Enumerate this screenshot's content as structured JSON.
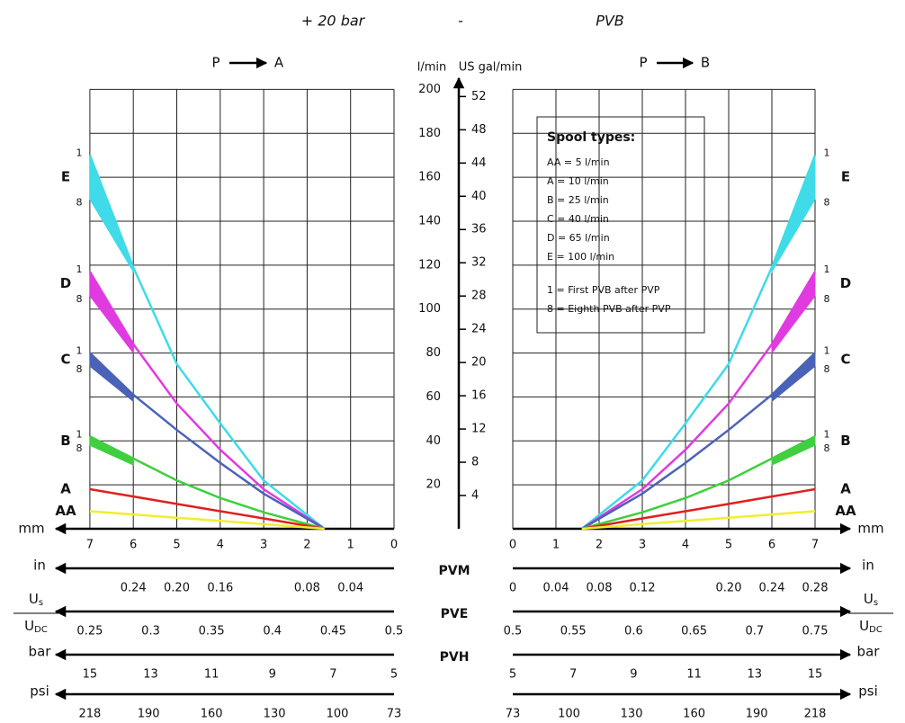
{
  "chart_data": {
    "type": "line",
    "title_parts": [
      "+ 20 bar",
      "-",
      "PVB"
    ],
    "panels": [
      {
        "from": "P",
        "to": "A"
      },
      {
        "from": "P",
        "to": "B"
      }
    ],
    "y_label": "l/min",
    "y2_label": "US gal/min",
    "ylim": [
      0,
      210
    ],
    "yticks": [
      20,
      40,
      60,
      80,
      100,
      120,
      140,
      160,
      180,
      200
    ],
    "y2lim": [
      0,
      55.5
    ],
    "y2ticks": [
      4,
      8,
      12,
      16,
      20,
      24,
      28,
      32,
      36,
      40,
      44,
      48,
      52
    ],
    "grid": true,
    "x_label": "mm",
    "xlim": [
      0,
      7
    ],
    "xticks": [
      0,
      1,
      2,
      3,
      4,
      5,
      6,
      7
    ],
    "x": [
      1.6,
      3,
      4,
      5,
      6,
      7
    ],
    "band_labels": [
      "1",
      "8"
    ],
    "series": [
      {
        "name": "E",
        "color": "#3fdbe8",
        "values": [
          0,
          22,
          48,
          75,
          119,
          170
        ],
        "low": [
          null,
          null,
          null,
          null,
          117,
          150
        ]
      },
      {
        "name": "D",
        "color": "#e03be0",
        "values": [
          0,
          18,
          36,
          57,
          84,
          117
        ],
        "low": [
          null,
          null,
          null,
          null,
          80,
          106
        ]
      },
      {
        "name": "C",
        "color": "#4a63b8",
        "values": [
          0,
          16,
          30,
          45,
          61,
          80
        ],
        "low": [
          null,
          null,
          null,
          null,
          58,
          74
        ]
      },
      {
        "name": "B",
        "color": "#3fcf3f",
        "values": [
          0,
          7.5,
          14,
          22,
          32,
          42
        ],
        "low": [
          null,
          null,
          null,
          null,
          29,
          38
        ]
      },
      {
        "name": "A",
        "color": "#e02020",
        "values": [
          0,
          4.7,
          8,
          11.3,
          14.7,
          18
        ],
        "low": [
          null,
          null,
          null,
          null,
          null,
          null
        ]
      },
      {
        "name": "AA",
        "color": "#f0ee30",
        "values": [
          0,
          2.1,
          3.6,
          5,
          6.5,
          8
        ],
        "low": [
          null,
          null,
          null,
          null,
          null,
          null
        ]
      }
    ],
    "legend": {
      "title": "Spool types:",
      "lines": [
        "AA = 5 l/min",
        "A = 10 l/min",
        "B = 25 l/min",
        "C = 40 l/min",
        "D = 65 l/min",
        "E = 100 l/min",
        "1 = First PVB after PVP",
        "8 = Eighth PVB after PVP"
      ]
    },
    "scales": [
      {
        "name": "in",
        "group": "PVM",
        "left": {
          "lim": [
            0,
            0.28
          ],
          "ticks": [
            0.04,
            0.08,
            0.16,
            {
              "value": 0.2,
              "label": "0.20"
            },
            0.24
          ]
        },
        "right": {
          "lim": [
            0,
            0.28
          ],
          "ticks": [
            0,
            0.04,
            0.08,
            0.12,
            {
              "value": 0.2,
              "label": "0.20"
            },
            0.24,
            0.28
          ]
        }
      },
      {
        "name": "U",
        "name_sub": "s",
        "denominator": "U",
        "denominator_sub": "DC",
        "group": "PVE",
        "left": {
          "lim": [
            0.5,
            0.25
          ],
          "ticks": [
            0.25,
            0.3,
            0.35,
            0.4,
            0.45,
            0.5
          ]
        },
        "right": {
          "lim": [
            0.5,
            0.75
          ],
          "ticks": [
            0.5,
            0.55,
            0.6,
            0.65,
            0.7,
            0.75
          ]
        }
      },
      {
        "name": "bar",
        "group": "PVH",
        "left": {
          "lim": [
            5,
            15
          ],
          "ticks": [
            15,
            13,
            11,
            9,
            7,
            5
          ]
        },
        "right": {
          "lim": [
            5,
            15
          ],
          "ticks": [
            5,
            7,
            9,
            11,
            13,
            15
          ]
        }
      },
      {
        "name": "psi",
        "left": {
          "lim": [
            73,
            218
          ],
          "ticks": [
            218,
            190,
            160,
            130,
            100,
            73
          ]
        },
        "right": {
          "lim": [
            73,
            218
          ],
          "ticks": [
            73,
            100,
            130,
            160,
            190,
            218
          ]
        }
      }
    ]
  }
}
